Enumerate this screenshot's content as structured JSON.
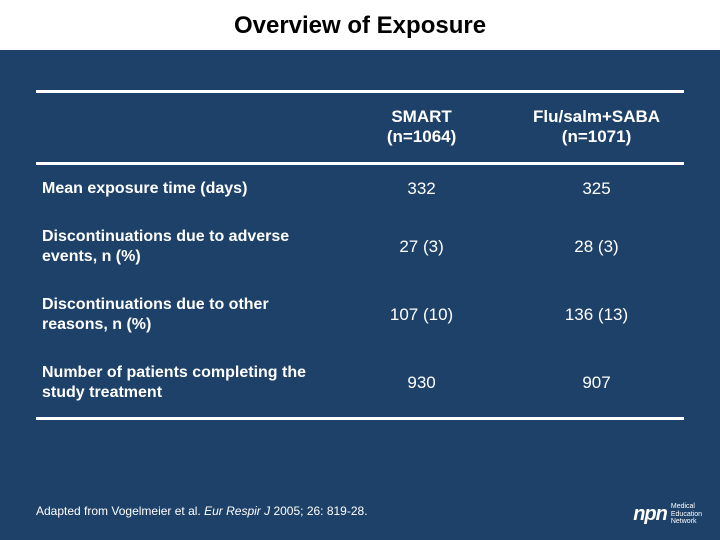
{
  "title": "Overview of Exposure",
  "table": {
    "colors": {
      "background": "#1d4168",
      "title_background": "#ffffff",
      "title_text": "#000000",
      "text": "#ffffff",
      "rule": "#ffffff"
    },
    "columns": [
      {
        "label_line1": "SMART",
        "label_line2": "(n=1064)"
      },
      {
        "label_line1": "Flu/salm+SABA",
        "label_line2": "(n=1071)"
      }
    ],
    "rows": [
      {
        "label": "Mean exposure time (days)",
        "a": "332",
        "b": "325"
      },
      {
        "label": "Discontinuations due to adverse events, n (%)",
        "a": "27 (3)",
        "b": "28 (3)"
      },
      {
        "label": "Discontinuations due to other reasons, n (%)",
        "a": "107 (10)",
        "b": "136 (13)"
      },
      {
        "label": "Number of patients completing the study treatment",
        "a": "930",
        "b": "907"
      }
    ]
  },
  "footnote": {
    "prefix": "Adapted from Vogelmeier et al. ",
    "journal": "Eur Respir J",
    "suffix": " 2005; 26: 819-28."
  },
  "logo": {
    "mark": "npn",
    "line1": "Medical",
    "line2": "Education",
    "line3": "Network"
  }
}
